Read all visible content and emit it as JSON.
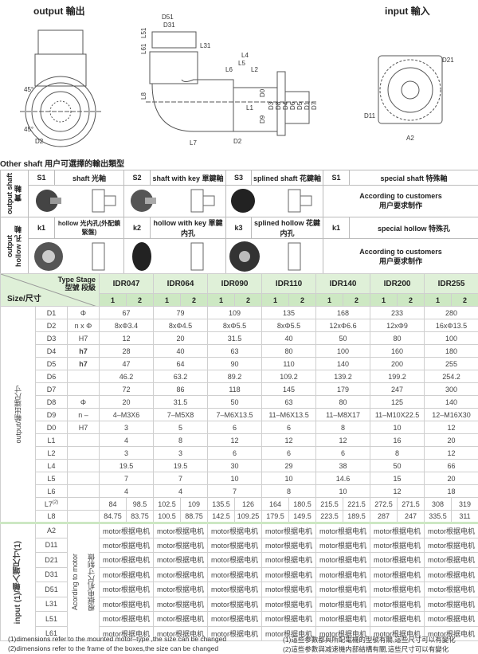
{
  "diagrams": {
    "output_title": "output 輸出",
    "input_title": "input 輸入",
    "side_labels": [
      "D51",
      "D31",
      "L51",
      "L61",
      "L31",
      "L4",
      "L5",
      "L6",
      "L2",
      "L8",
      "D0",
      "L1",
      "D9",
      "D3",
      "D8",
      "D4",
      "D6",
      "D5",
      "D1",
      "D7",
      "D2",
      "L7"
    ],
    "output_labels": [
      "45°",
      "45°",
      "D2"
    ],
    "input_labels": [
      "D21",
      "D11",
      "A2"
    ]
  },
  "shaft": {
    "caption": "Other shaft   用户可選擇的輸出類型",
    "row_labels": [
      "output shaft 實 軸",
      "output hollow 孔 軸"
    ],
    "shaft_types": [
      {
        "code": "S1",
        "name": "shaft 光軸"
      },
      {
        "code": "S2",
        "name": "shaft with key 單鍵軸"
      },
      {
        "code": "S3",
        "name": "splined shaft 花鍵軸"
      },
      {
        "code": "S1",
        "name": "special shaft 特殊軸"
      }
    ],
    "hollow_types": [
      {
        "code": "k1",
        "name": "hollow 光内孔(外配鎖緊盤)"
      },
      {
        "code": "k2",
        "name": "hollow with key 單鍵内孔"
      },
      {
        "code": "k3",
        "name": "splined hollow 花鍵内孔"
      },
      {
        "code": "k1",
        "name": "special hollow 特殊孔"
      }
    ],
    "custom_note": "According to customers",
    "custom_note_cn": "用户要求制作"
  },
  "spec": {
    "type_stage": "Type Stage",
    "type_stage_cn": "型號 段級",
    "size_label": "Size/尺寸",
    "models": [
      "IDR047",
      "IDR064",
      "IDR090",
      "IDR110",
      "IDR140",
      "IDR200",
      "IDR255"
    ],
    "stages": [
      "1",
      "2"
    ],
    "output_label": "output/輸出端尺寸",
    "output_rows": [
      {
        "name": "D1",
        "tol": "Φ",
        "values": [
          "67",
          "79",
          "109",
          "135",
          "168",
          "233",
          "280"
        ]
      },
      {
        "name": "D2",
        "tol": "n x Φ",
        "values": [
          "8xΦ3.4",
          "8xΦ4.5",
          "8xΦ5.5",
          "8xΦ5.5",
          "12xΦ6.6",
          "12xΦ9",
          "16xΦ13.5"
        ]
      },
      {
        "name": "D3",
        "tol": "H7",
        "values": [
          "12",
          "20",
          "31.5",
          "40",
          "50",
          "80",
          "100"
        ]
      },
      {
        "name": "D4",
        "tol": "h7",
        "values": [
          "28",
          "40",
          "63",
          "80",
          "100",
          "160",
          "180"
        ]
      },
      {
        "name": "D5",
        "tol": "h7",
        "values": [
          "47",
          "64",
          "90",
          "110",
          "140",
          "200",
          "255"
        ]
      },
      {
        "name": "D6",
        "tol": "",
        "values": [
          "46.2",
          "63.2",
          "89.2",
          "109.2",
          "139.2",
          "199.2",
          "254.2"
        ]
      },
      {
        "name": "D7",
        "tol": "",
        "values": [
          "72",
          "86",
          "118",
          "145",
          "179",
          "247",
          "300"
        ]
      },
      {
        "name": "D8",
        "tol": "Φ",
        "values": [
          "20",
          "31.5",
          "50",
          "63",
          "80",
          "125",
          "140"
        ]
      },
      {
        "name": "D9",
        "tol": "n –",
        "values": [
          "4–M3X6",
          "7–M5X8",
          "7–M6X13.5",
          "11–M6X13.5",
          "11–M8X17",
          "11–M10X22.5",
          "12–M16X30"
        ]
      },
      {
        "name": "D0",
        "tol": "H7",
        "values": [
          "3",
          "5",
          "6",
          "6",
          "8",
          "10",
          "12"
        ]
      },
      {
        "name": "L1",
        "tol": "",
        "values": [
          "4",
          "8",
          "12",
          "12",
          "12",
          "16",
          "20"
        ]
      },
      {
        "name": "L2",
        "tol": "",
        "values": [
          "3",
          "3",
          "6",
          "6",
          "6",
          "8",
          "12"
        ]
      },
      {
        "name": "L4",
        "tol": "",
        "values": [
          "19.5",
          "19.5",
          "30",
          "29",
          "38",
          "50",
          "66"
        ]
      },
      {
        "name": "L5",
        "tol": "",
        "values": [
          "7",
          "7",
          "10",
          "10",
          "14.6",
          "15",
          "20"
        ]
      },
      {
        "name": "L6",
        "tol": "",
        "values": [
          "4",
          "4",
          "7",
          "8",
          "10",
          "12",
          "18"
        ]
      },
      {
        "name": "L7",
        "sup": "(2)",
        "tol": "",
        "values": [
          "84",
          "98.5",
          "102.5",
          "109",
          "135.5",
          "126",
          "164",
          "180.5",
          "215.5",
          "221.5",
          "272.5",
          "271.5",
          "308",
          "319"
        ]
      },
      {
        "name": "L8",
        "tol": "",
        "values": [
          "84.75",
          "83.75",
          "100.5",
          "88.75",
          "142.5",
          "109.25",
          "179.5",
          "149.5",
          "223.5",
          "189.5",
          "287",
          "247",
          "335.5",
          "311"
        ]
      }
    ],
    "input_label": "input (1)/輸入端尺寸(1)",
    "input_note": "Acording to motor",
    "input_note_cn": "根据电机尺寸制做",
    "input_rows": [
      "A2",
      "D11",
      "D21",
      "D31",
      "D51",
      "L31",
      "L51",
      "L61"
    ],
    "input_value": "motor根据电机"
  },
  "footnotes": {
    "en": [
      "(1)dimensions refer to the mounted motor–type ,the size can be changed",
      "(2)dimensions refer to the frame of the boxes,the size can be changed"
    ],
    "cn": [
      "(1)這些参數都與所配電機的型號有關,這些尺寸可以有變化",
      "(2)這些参數與减速機内部結構有關,這些尺寸可以有變化"
    ]
  },
  "colors": {
    "header_green": "#cde8c3",
    "light_green": "#dff0d8"
  }
}
